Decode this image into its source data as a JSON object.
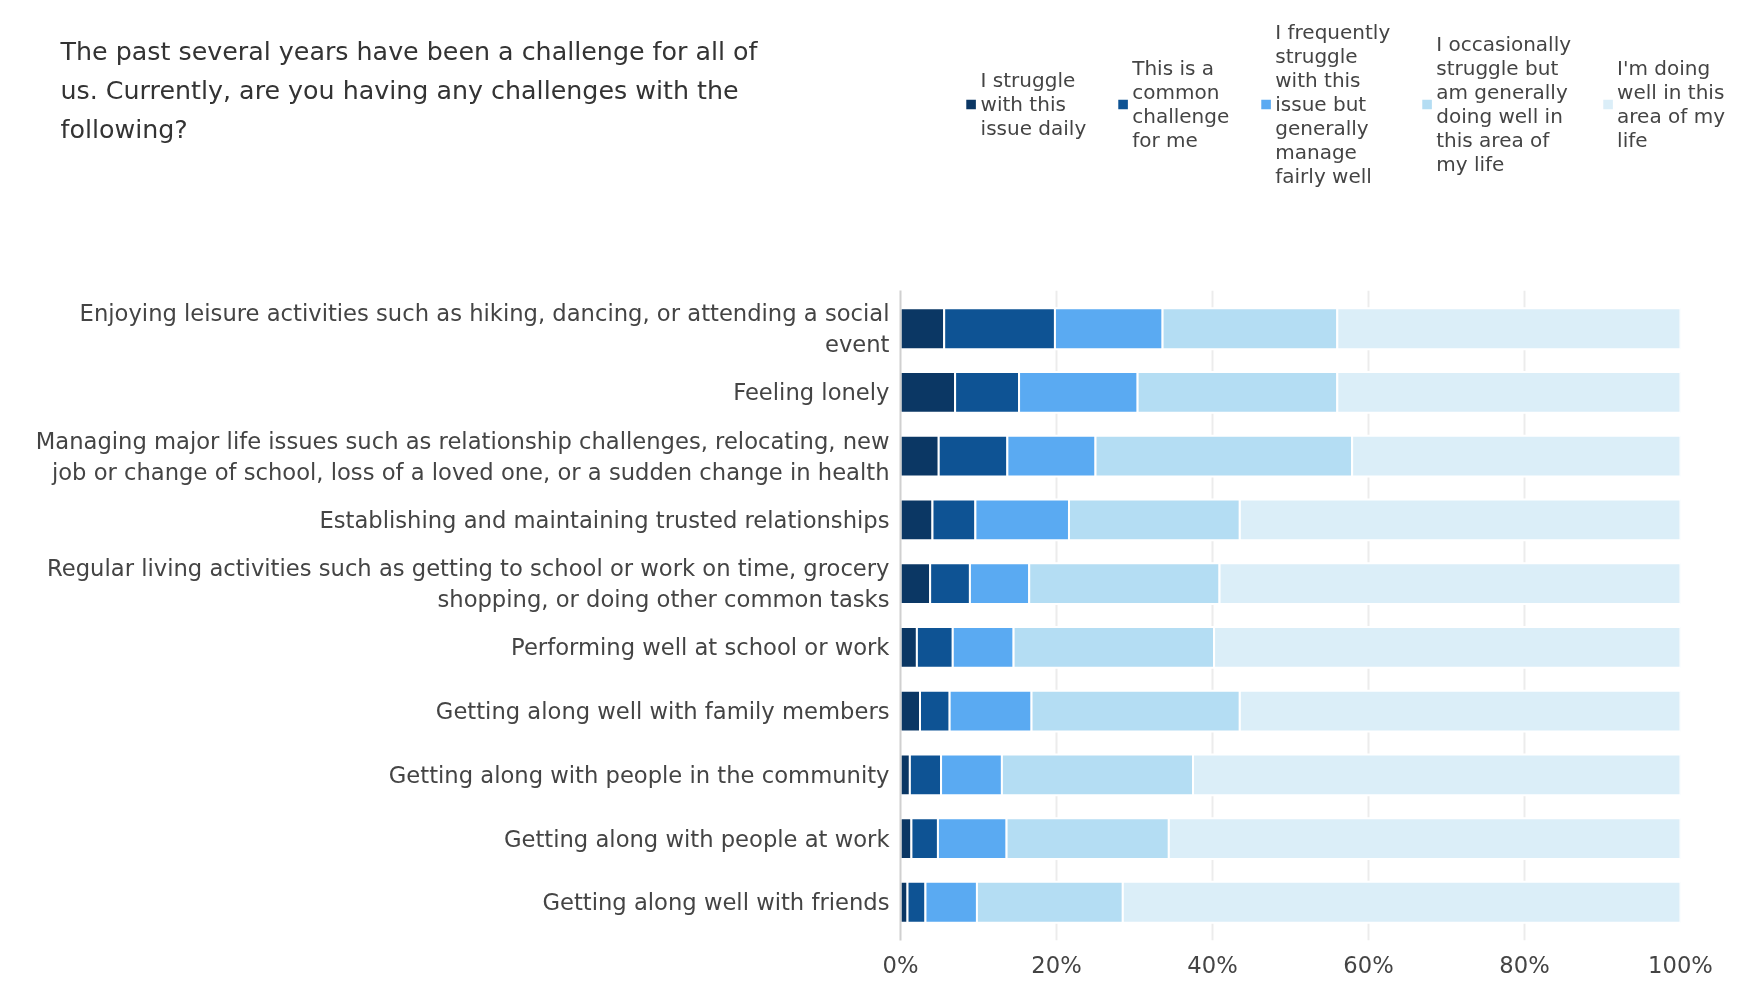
{
  "chart_data": {
    "type": "bar",
    "orientation": "horizontal",
    "stacked": true,
    "title": "The past several years have been a challenge for all of us. Currently, are you having any challenges with the following?",
    "categories": [
      "Enjoying leisure activities such as hiking, dancing, or attending a social event",
      "Feeling lonely",
      "Managing major life issues such as relationship challenges, relocating, new job or change of school, loss of a loved one, or a sudden change in health",
      "Establishing and maintaining trusted relationships",
      "Regular living activities such as getting to school or work on time, grocery shopping, or doing other common tasks",
      "Performing well at school or work",
      "Getting along well with family members",
      "Getting along with people in the community",
      "Getting along with people at work",
      "Getting along well with friends"
    ],
    "series": [
      {
        "name": "I struggle with this issue daily",
        "color": "#0b3764",
        "values": [
          5.6,
          7.0,
          4.9,
          4.1,
          3.8,
          2.1,
          2.5,
          1.2,
          1.4,
          0.9
        ]
      },
      {
        "name": "This is a common challenge for me",
        "color": "#0e5394",
        "values": [
          14.2,
          8.2,
          8.8,
          5.5,
          5.1,
          4.6,
          3.8,
          4.0,
          3.4,
          2.3
        ]
      },
      {
        "name": "I frequently struggle with this issue but generally manage fairly well",
        "color": "#5aaaf2",
        "values": [
          13.8,
          15.2,
          11.3,
          12.0,
          7.6,
          7.8,
          10.5,
          7.8,
          8.8,
          6.6
        ]
      },
      {
        "name": "I occasionally struggle but am generally doing well in this area of my life",
        "color": "#b4ddf3",
        "values": [
          22.4,
          25.6,
          32.9,
          21.9,
          24.4,
          25.7,
          26.7,
          24.5,
          20.8,
          18.7
        ]
      },
      {
        "name": "I'm doing well in this area of my life",
        "color": "#dbeef8",
        "values": [
          44.0,
          44.0,
          42.1,
          56.5,
          59.1,
          59.8,
          56.5,
          62.5,
          65.6,
          71.5
        ]
      }
    ],
    "xlim": [
      0,
      100
    ],
    "xticks": [
      {
        "value": 0,
        "label": "0%"
      },
      {
        "value": 20,
        "label": "20%"
      },
      {
        "value": 40,
        "label": "40%"
      },
      {
        "value": 60,
        "label": "60%"
      },
      {
        "value": 80,
        "label": "80%"
      },
      {
        "value": 100,
        "label": "100%"
      }
    ],
    "grid": "x",
    "legend": "top right"
  }
}
